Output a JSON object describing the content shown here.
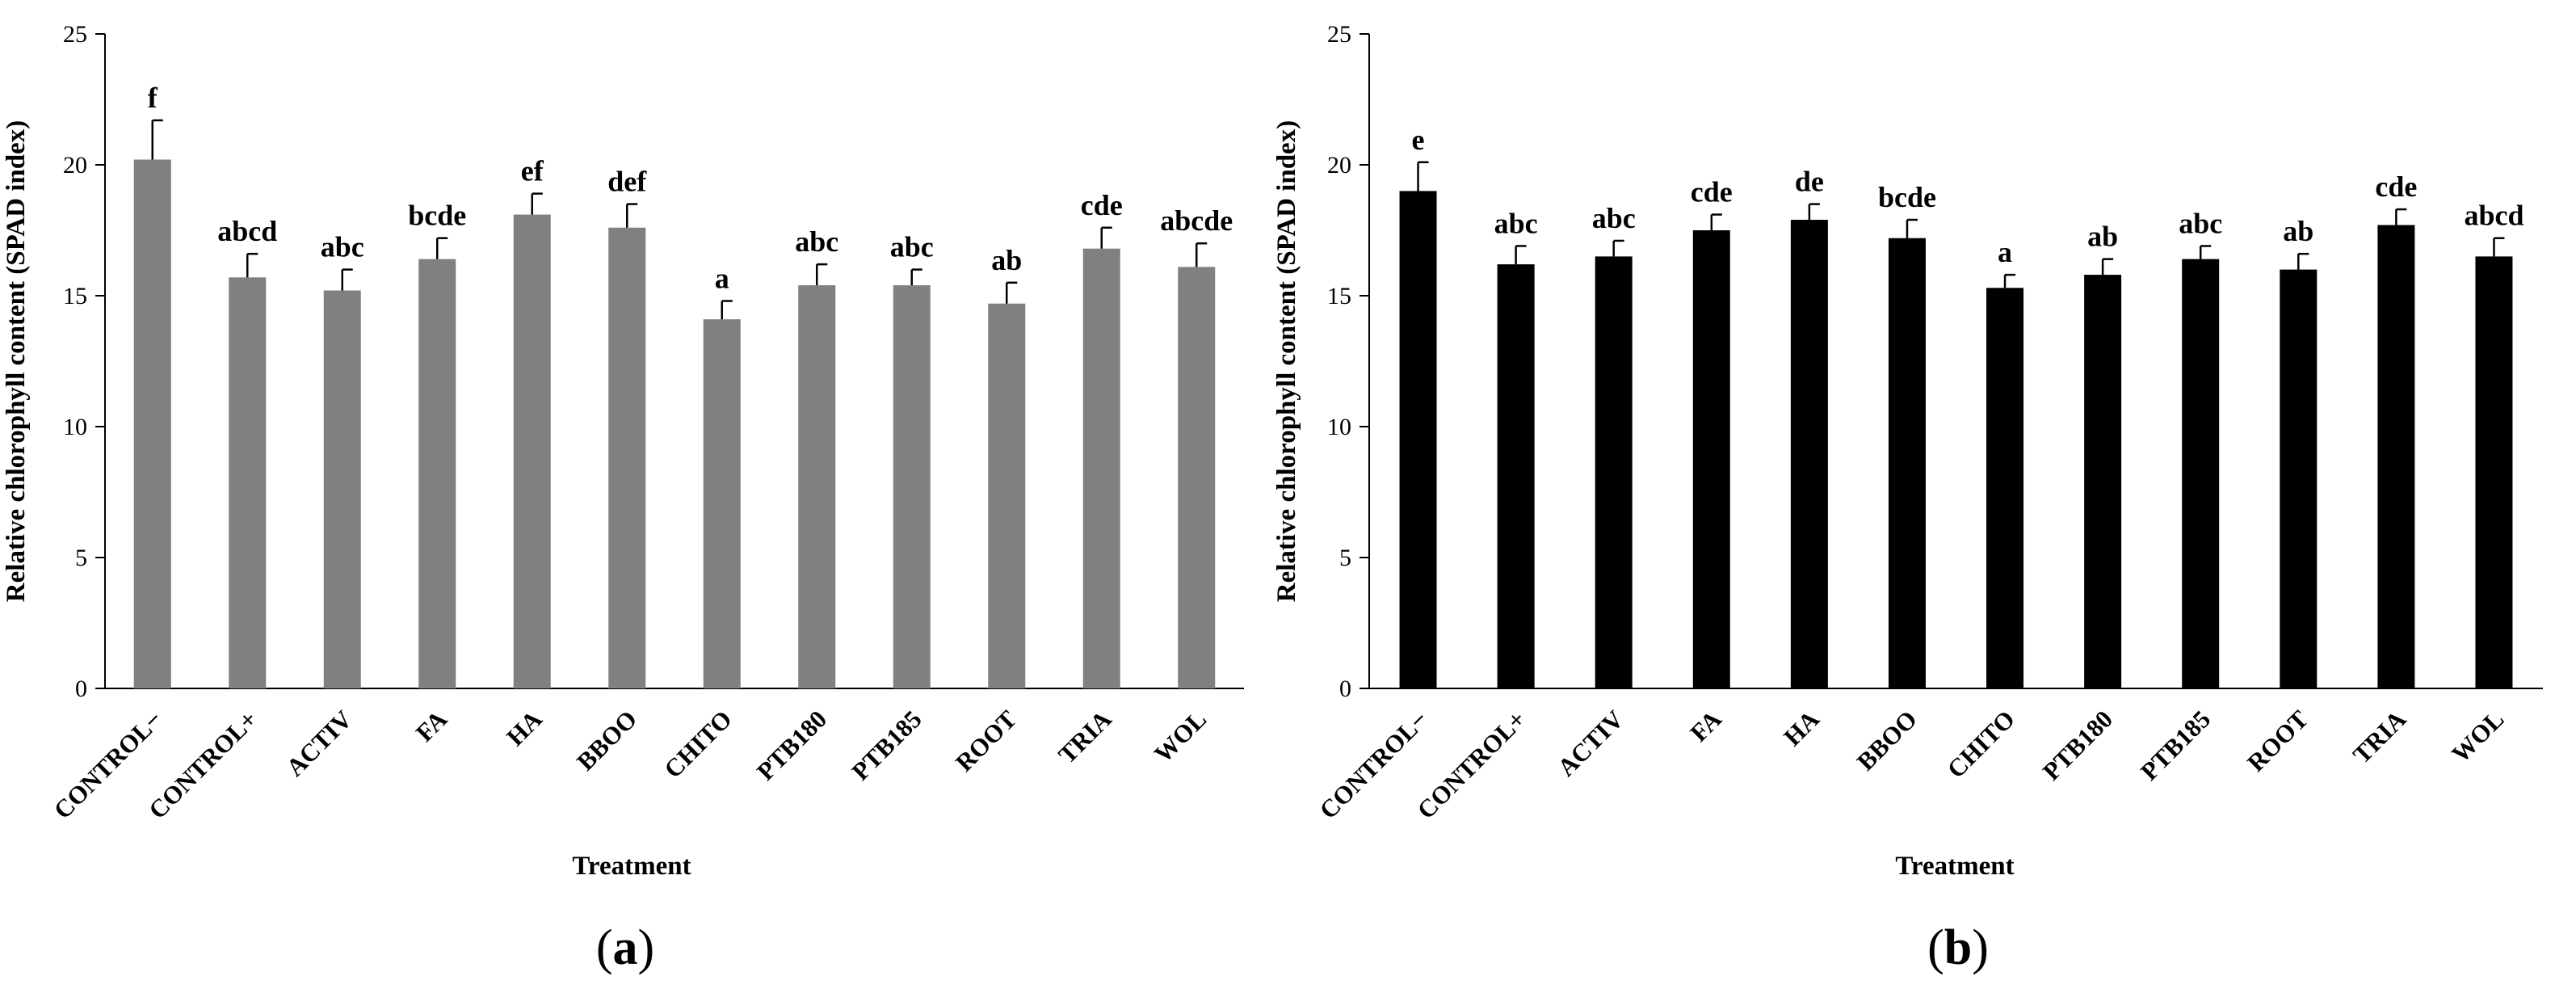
{
  "chart_data": [
    {
      "type": "bar",
      "panel": "a",
      "panel_label_open": "(",
      "panel_label_close": ")",
      "xlabel": "Treatment",
      "ylabel": "Relative chlorophyll content (SPAD index)",
      "ylim": [
        0,
        25
      ],
      "yticks": [
        0,
        5,
        10,
        15,
        20,
        25
      ],
      "bar_color": "#808080",
      "categories": [
        "CONTROL−",
        "CONTROL+",
        "ACTIV",
        "FA",
        "HA",
        "BBOO",
        "CHITO",
        "PTB180",
        "PTB185",
        "ROOT",
        "TRIA",
        "WOL"
      ],
      "values": [
        20.2,
        15.7,
        15.2,
        16.4,
        18.1,
        17.6,
        14.1,
        15.4,
        15.4,
        14.7,
        16.8,
        16.1
      ],
      "errors": [
        1.5,
        0.9,
        0.8,
        0.8,
        0.8,
        0.9,
        0.7,
        0.8,
        0.6,
        0.8,
        0.8,
        0.9
      ],
      "significance": [
        "f",
        "abcd",
        "abc",
        "bcde",
        "ef",
        "def",
        "a",
        "abc",
        "abc",
        "ab",
        "cde",
        "abcde"
      ]
    },
    {
      "type": "bar",
      "panel": "b",
      "panel_label_open": "(",
      "panel_label_close": ")",
      "xlabel": "Treatment",
      "ylabel": "Relative chlorophyll content (SPAD index)",
      "ylim": [
        0,
        25
      ],
      "yticks": [
        0,
        5,
        10,
        15,
        20,
        25
      ],
      "bar_color": "#000000",
      "categories": [
        "CONTROL−",
        "CONTROL+",
        "ACTIV",
        "FA",
        "HA",
        "BBOO",
        "CHITO",
        "PTB180",
        "PTB185",
        "ROOT",
        "TRIA",
        "WOL"
      ],
      "values": [
        19.0,
        16.2,
        16.5,
        17.5,
        17.9,
        17.2,
        15.3,
        15.8,
        16.4,
        16.0,
        17.7,
        16.5
      ],
      "errors": [
        1.1,
        0.7,
        0.6,
        0.6,
        0.6,
        0.7,
        0.5,
        0.6,
        0.5,
        0.6,
        0.6,
        0.7
      ],
      "significance": [
        "e",
        "abc",
        "abc",
        "cde",
        "de",
        "bcde",
        "a",
        "ab",
        "abc",
        "ab",
        "cde",
        "abcd"
      ]
    }
  ]
}
